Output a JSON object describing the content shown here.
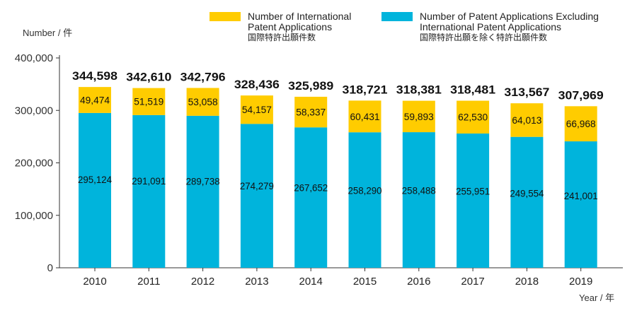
{
  "legend": {
    "international": {
      "line1": "Number of International",
      "line2": "Patent Applications",
      "line3": "国際特許出願件数",
      "color": "#FFCC00"
    },
    "excluding": {
      "line1": "Number of Patent Applications Excluding",
      "line2": "International Patent Applications",
      "line3": "国際特許出願を除く特許出願件数",
      "color": "#00B4DC"
    }
  },
  "axes": {
    "y_unit": "Number / 件",
    "x_unit": "Year / 年"
  },
  "chart_data": {
    "type": "bar",
    "stacked": true,
    "categories": [
      "2010",
      "2011",
      "2012",
      "2013",
      "2014",
      "2015",
      "2016",
      "2017",
      "2018",
      "2019"
    ],
    "series": [
      {
        "name": "Number of Patent Applications Excluding International Patent Applications",
        "color": "#00B4DC",
        "values": [
          295124,
          291091,
          289738,
          274279,
          267652,
          258290,
          258488,
          255951,
          249554,
          241001
        ],
        "labels": [
          "295,124",
          "291,091",
          "289,738",
          "274,279",
          "267,652",
          "258,290",
          "258,488",
          "255,951",
          "249,554",
          "241,001"
        ]
      },
      {
        "name": "Number of International Patent Applications",
        "color": "#FFCC00",
        "values": [
          49474,
          51519,
          53058,
          54157,
          58337,
          60431,
          59893,
          62530,
          64013,
          66968
        ],
        "labels": [
          "49,474",
          "51,519",
          "53,058",
          "54,157",
          "58,337",
          "60,431",
          "59,893",
          "62,530",
          "64,013",
          "66,968"
        ]
      }
    ],
    "totals": [
      344598,
      342610,
      342796,
      328436,
      325989,
      318721,
      318381,
      318481,
      313567,
      307969
    ],
    "total_labels": [
      "344,598",
      "342,610",
      "342,796",
      "328,436",
      "325,989",
      "318,721",
      "318,381",
      "318,481",
      "313,567",
      "307,969"
    ],
    "ylim": [
      0,
      400000
    ],
    "yticks": [
      0,
      100000,
      200000,
      300000,
      400000
    ],
    "ytick_labels": [
      "0",
      "100,000",
      "200,000",
      "300,000",
      "400,000"
    ],
    "grid": false,
    "legend_position": "top"
  }
}
